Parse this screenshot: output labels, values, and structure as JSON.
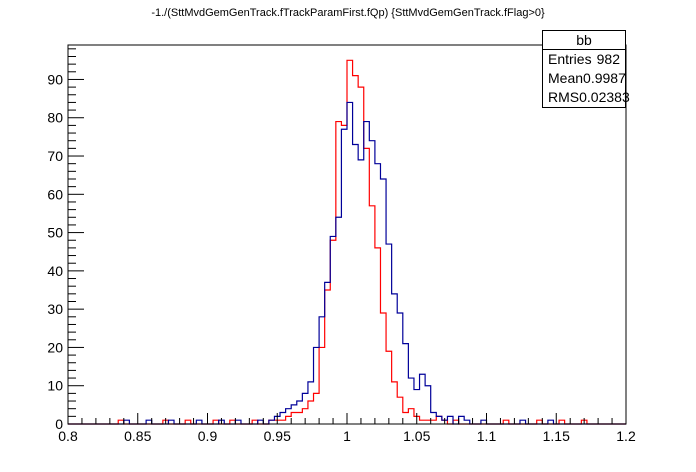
{
  "title": "-1./(SttMvdGemGenTrack.fTrackParamFirst.fQp) {SttMvdGemGenTrack.fFlag>0}",
  "stats": {
    "name": "bb",
    "entries_label": "Entries",
    "entries": "982",
    "mean_label": "Mean",
    "mean": "0.9987",
    "rms_label": "RMS",
    "rms": "0.02383"
  },
  "chart_data": {
    "type": "histogram",
    "title": "-1./(SttMvdGemGenTrack.fTrackParamFirst.fQp) {SttMvdGemGenTrack.fFlag>0}",
    "xlabel": "",
    "ylabel": "",
    "xlim": [
      0.8,
      1.2
    ],
    "ylim": [
      0,
      99
    ],
    "x_ticks": [
      "0.8",
      "0.85",
      "0.9",
      "0.95",
      "1",
      "1.05",
      "1.1",
      "1.15",
      "1.2"
    ],
    "y_ticks": [
      "0",
      "10",
      "20",
      "30",
      "40",
      "50",
      "60",
      "70",
      "80",
      "90"
    ],
    "bin_width": 0.004,
    "grid": false,
    "series": [
      {
        "color": "#ff0000",
        "bins": [
          {
            "x": 0.836,
            "y": 1
          },
          {
            "x": 0.868,
            "y": 1
          },
          {
            "x": 0.884,
            "y": 1
          },
          {
            "x": 0.904,
            "y": 1
          },
          {
            "x": 0.916,
            "y": 1
          },
          {
            "x": 0.932,
            "y": 1
          },
          {
            "x": 0.944,
            "y": 1
          },
          {
            "x": 0.948,
            "y": 1
          },
          {
            "x": 0.952,
            "y": 1
          },
          {
            "x": 0.956,
            "y": 2
          },
          {
            "x": 0.96,
            "y": 3
          },
          {
            "x": 0.964,
            "y": 3
          },
          {
            "x": 0.968,
            "y": 4
          },
          {
            "x": 0.972,
            "y": 6
          },
          {
            "x": 0.976,
            "y": 8
          },
          {
            "x": 0.98,
            "y": 20
          },
          {
            "x": 0.984,
            "y": 35
          },
          {
            "x": 0.988,
            "y": 48
          },
          {
            "x": 0.992,
            "y": 79
          },
          {
            "x": 0.996,
            "y": 78
          },
          {
            "x": 1.0,
            "y": 95
          },
          {
            "x": 1.004,
            "y": 91
          },
          {
            "x": 1.008,
            "y": 88
          },
          {
            "x": 1.012,
            "y": 72
          },
          {
            "x": 1.016,
            "y": 57
          },
          {
            "x": 1.02,
            "y": 46
          },
          {
            "x": 1.024,
            "y": 29
          },
          {
            "x": 1.028,
            "y": 19
          },
          {
            "x": 1.032,
            "y": 11
          },
          {
            "x": 1.036,
            "y": 7
          },
          {
            "x": 1.04,
            "y": 3
          },
          {
            "x": 1.044,
            "y": 4
          },
          {
            "x": 1.048,
            "y": 2
          },
          {
            "x": 1.052,
            "y": 1
          },
          {
            "x": 1.056,
            "y": 1
          },
          {
            "x": 1.06,
            "y": 1
          },
          {
            "x": 1.064,
            "y": 2
          },
          {
            "x": 1.068,
            "y": 1
          },
          {
            "x": 1.076,
            "y": 1
          },
          {
            "x": 1.112,
            "y": 1
          },
          {
            "x": 1.136,
            "y": 1
          },
          {
            "x": 1.152,
            "y": 1
          },
          {
            "x": 1.168,
            "y": 1
          }
        ]
      },
      {
        "color": "#000099",
        "bins": [
          {
            "x": 0.84,
            "y": 1
          },
          {
            "x": 0.856,
            "y": 1
          },
          {
            "x": 0.872,
            "y": 1
          },
          {
            "x": 0.892,
            "y": 1
          },
          {
            "x": 0.908,
            "y": 1
          },
          {
            "x": 0.92,
            "y": 1
          },
          {
            "x": 0.936,
            "y": 1
          },
          {
            "x": 0.944,
            "y": 1
          },
          {
            "x": 0.948,
            "y": 2
          },
          {
            "x": 0.952,
            "y": 3
          },
          {
            "x": 0.956,
            "y": 4
          },
          {
            "x": 0.96,
            "y": 5
          },
          {
            "x": 0.964,
            "y": 6
          },
          {
            "x": 0.968,
            "y": 8
          },
          {
            "x": 0.972,
            "y": 11
          },
          {
            "x": 0.976,
            "y": 20
          },
          {
            "x": 0.98,
            "y": 28
          },
          {
            "x": 0.984,
            "y": 37
          },
          {
            "x": 0.988,
            "y": 49
          },
          {
            "x": 0.992,
            "y": 54
          },
          {
            "x": 0.996,
            "y": 77
          },
          {
            "x": 1.0,
            "y": 84
          },
          {
            "x": 1.004,
            "y": 73
          },
          {
            "x": 1.008,
            "y": 69
          },
          {
            "x": 1.012,
            "y": 79
          },
          {
            "x": 1.016,
            "y": 74
          },
          {
            "x": 1.02,
            "y": 68
          },
          {
            "x": 1.024,
            "y": 64
          },
          {
            "x": 1.028,
            "y": 47
          },
          {
            "x": 1.032,
            "y": 34
          },
          {
            "x": 1.036,
            "y": 29
          },
          {
            "x": 1.04,
            "y": 21
          },
          {
            "x": 1.044,
            "y": 12
          },
          {
            "x": 1.048,
            "y": 9
          },
          {
            "x": 1.052,
            "y": 13
          },
          {
            "x": 1.056,
            "y": 10
          },
          {
            "x": 1.06,
            "y": 3
          },
          {
            "x": 1.064,
            "y": 2
          },
          {
            "x": 1.068,
            "y": 1
          },
          {
            "x": 1.072,
            "y": 2
          },
          {
            "x": 1.08,
            "y": 2
          },
          {
            "x": 1.084,
            "y": 1
          },
          {
            "x": 1.096,
            "y": 1
          },
          {
            "x": 1.124,
            "y": 1
          },
          {
            "x": 1.144,
            "y": 1
          }
        ]
      }
    ]
  }
}
